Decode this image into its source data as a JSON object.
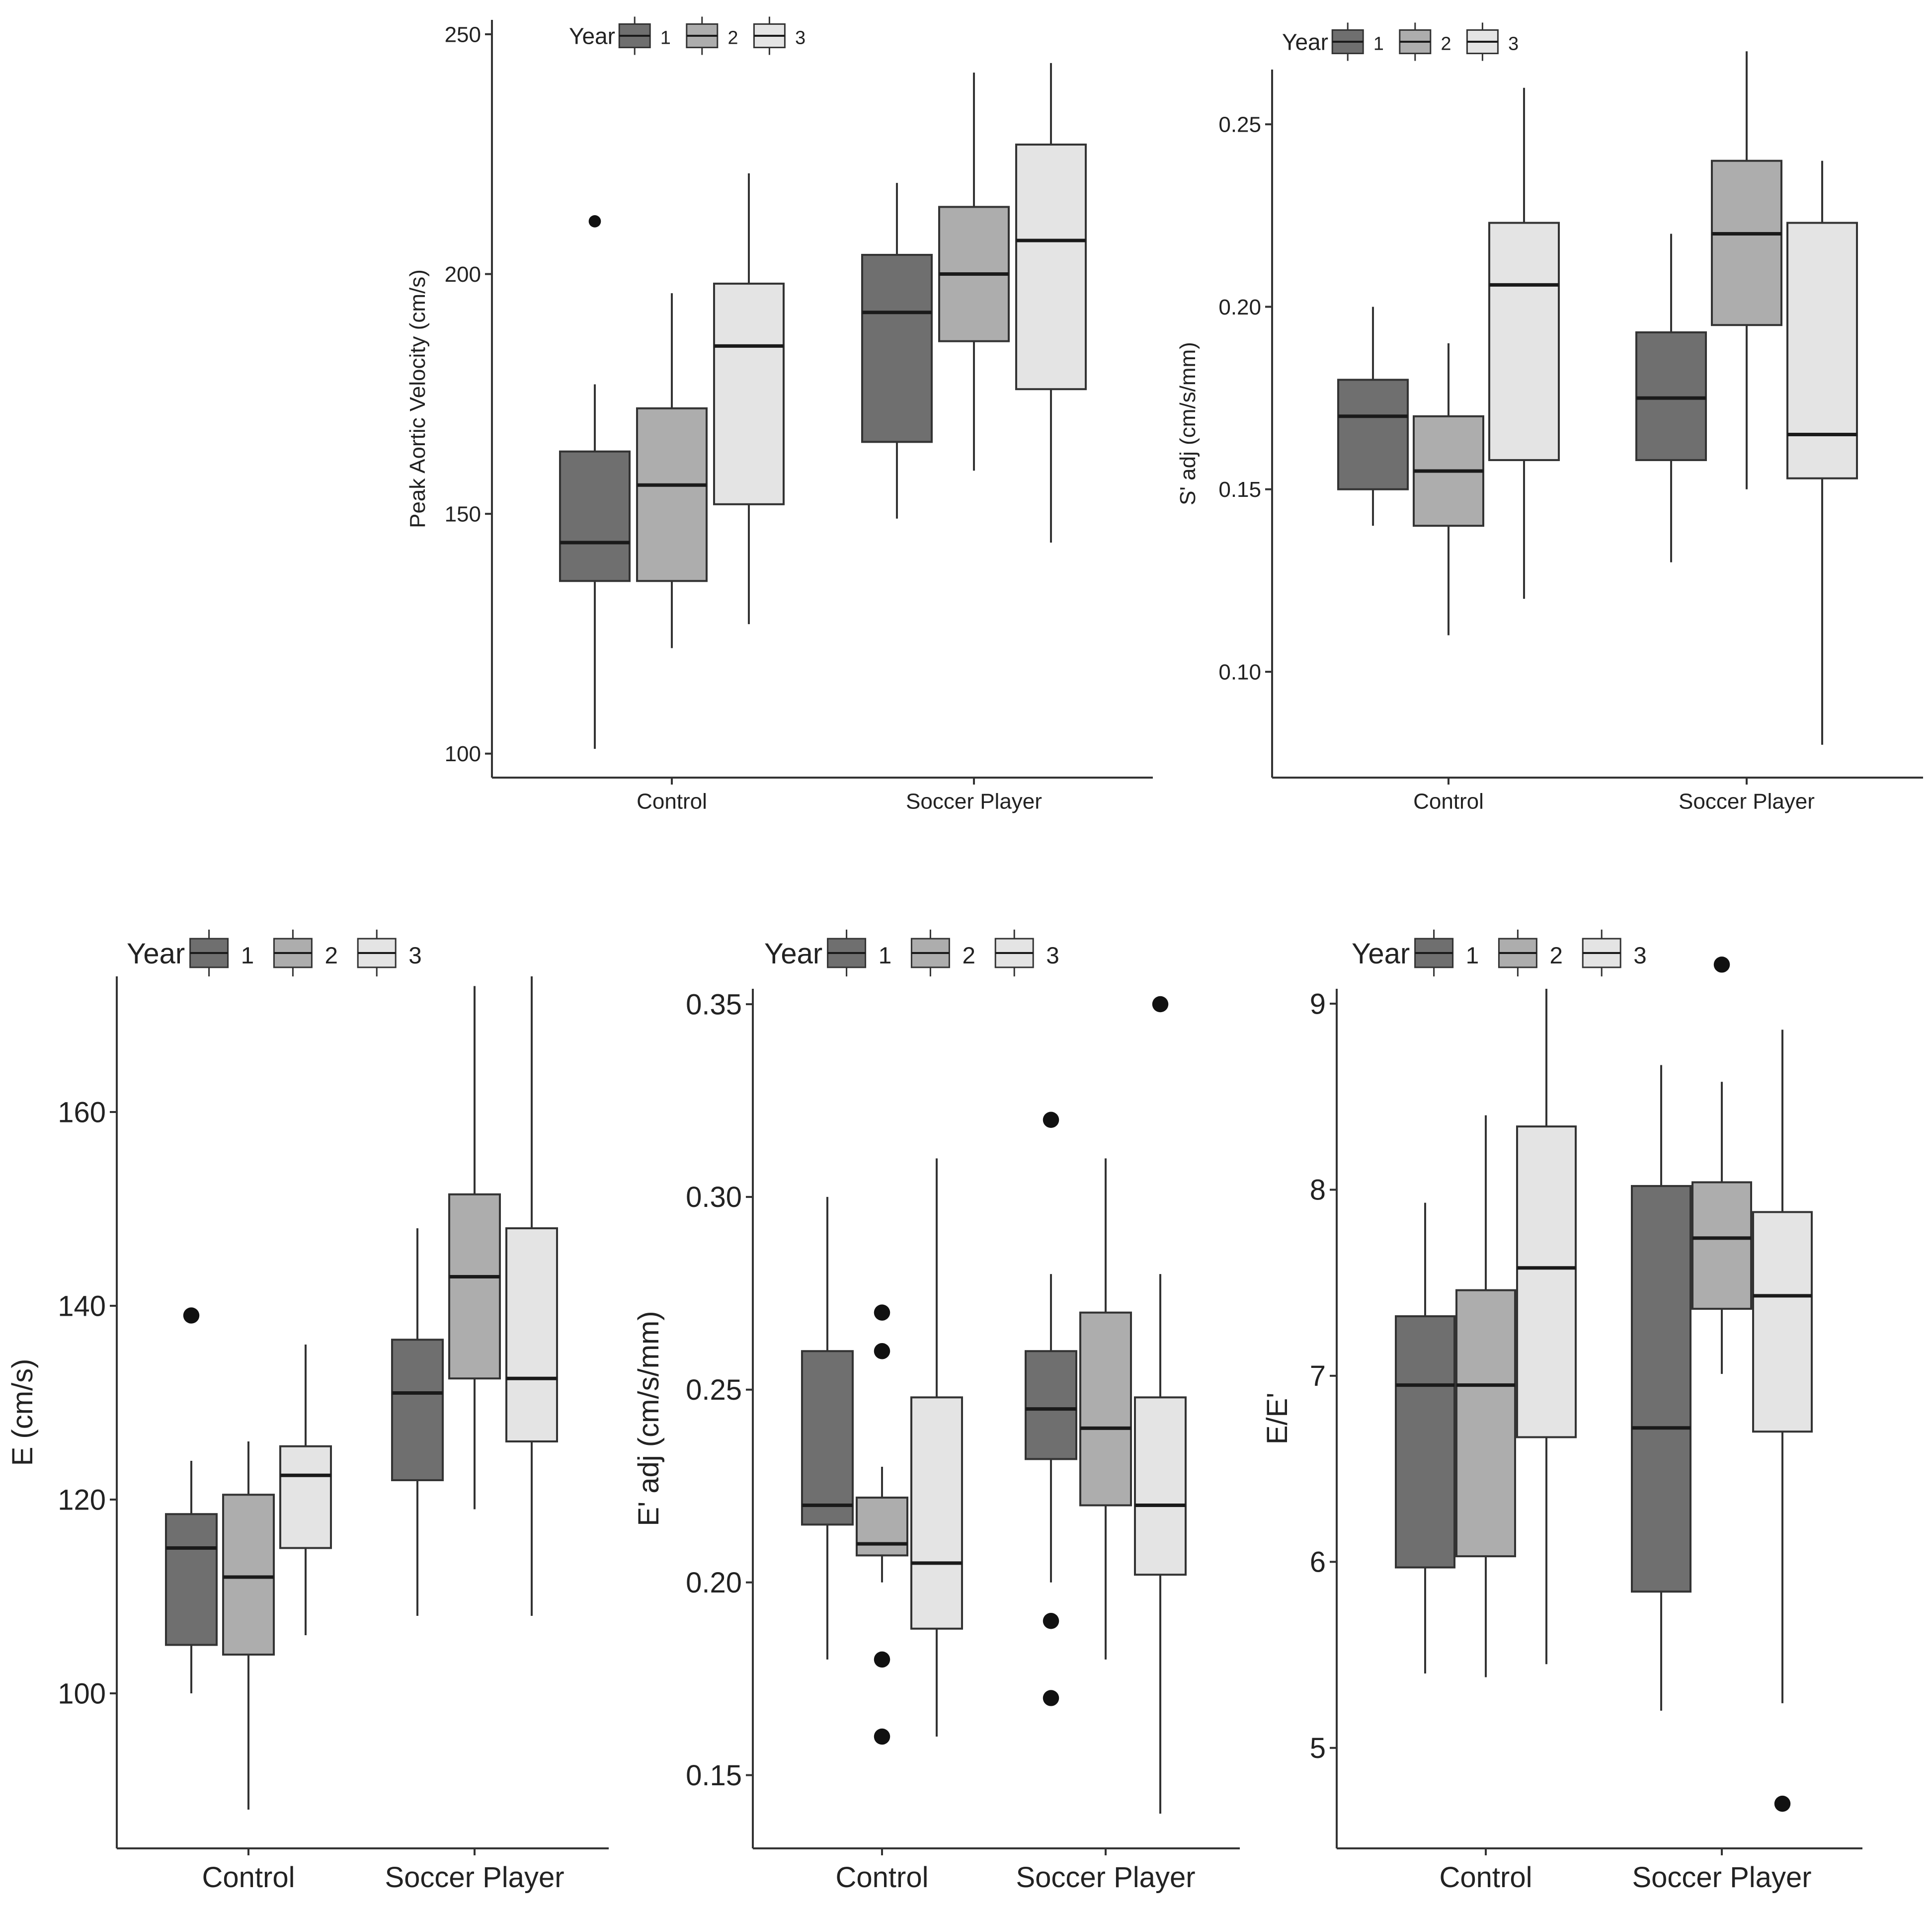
{
  "colors": {
    "year1": "#6f6f6f",
    "year2": "#adadad",
    "year3": "#e4e4e4",
    "stroke": "#333333",
    "axis": "#333333",
    "text": "#222222"
  },
  "chart_data": [
    {
      "type": "boxplot",
      "title": "",
      "xlabel": "",
      "ylabel": "Peak Aortic Velocity (cm/s)",
      "ylim": [
        95,
        253
      ],
      "yticks": [
        100,
        150,
        200,
        250
      ],
      "ytick_labels": [
        "100",
        "150",
        "200",
        "250"
      ],
      "categories": [
        "Control",
        "Soccer Player"
      ],
      "legend": {
        "title": "Year",
        "labels": [
          "1",
          "2",
          "3"
        ],
        "position": "top-left"
      },
      "series": [
        {
          "name": "1",
          "color": "#6f6f6f",
          "boxes": [
            {
              "whisker_low": 101,
              "q1": 136,
              "median": 144,
              "q3": 163,
              "whisker_high": 177,
              "outliers": [
                211
              ]
            },
            {
              "whisker_low": 149,
              "q1": 165,
              "median": 192,
              "q3": 204,
              "whisker_high": 219,
              "outliers": []
            }
          ]
        },
        {
          "name": "2",
          "color": "#adadad",
          "boxes": [
            {
              "whisker_low": 122,
              "q1": 136,
              "median": 156,
              "q3": 172,
              "whisker_high": 196,
              "outliers": []
            },
            {
              "whisker_low": 159,
              "q1": 186,
              "median": 200,
              "q3": 214,
              "whisker_high": 242,
              "outliers": []
            }
          ]
        },
        {
          "name": "3",
          "color": "#e4e4e4",
          "boxes": [
            {
              "whisker_low": 127,
              "q1": 152,
              "median": 185,
              "q3": 198,
              "whisker_high": 221,
              "outliers": []
            },
            {
              "whisker_low": 144,
              "q1": 176,
              "median": 207,
              "q3": 227,
              "whisker_high": 244,
              "outliers": []
            }
          ]
        }
      ]
    },
    {
      "type": "boxplot",
      "title": "",
      "xlabel": "",
      "ylabel": "S' adj (cm/s/mm)",
      "ylim": [
        0.071,
        0.265
      ],
      "yticks": [
        0.1,
        0.15,
        0.2,
        0.25
      ],
      "ytick_labels": [
        "0.10",
        "0.15",
        "0.20",
        "0.25"
      ],
      "categories": [
        "Control",
        "Soccer Player"
      ],
      "legend": {
        "title": "Year",
        "labels": [
          "1",
          "2",
          "3"
        ],
        "position": "top-left"
      },
      "series": [
        {
          "name": "1",
          "color": "#6f6f6f",
          "boxes": [
            {
              "whisker_low": 0.14,
              "q1": 0.15,
              "median": 0.17,
              "q3": 0.18,
              "whisker_high": 0.2,
              "outliers": []
            },
            {
              "whisker_low": 0.13,
              "q1": 0.158,
              "median": 0.175,
              "q3": 0.193,
              "whisker_high": 0.22,
              "outliers": []
            }
          ]
        },
        {
          "name": "2",
          "color": "#adadad",
          "boxes": [
            {
              "whisker_low": 0.11,
              "q1": 0.14,
              "median": 0.155,
              "q3": 0.17,
              "whisker_high": 0.19,
              "outliers": []
            },
            {
              "whisker_low": 0.15,
              "q1": 0.195,
              "median": 0.22,
              "q3": 0.24,
              "whisker_high": 0.27,
              "outliers": []
            }
          ]
        },
        {
          "name": "3",
          "color": "#e4e4e4",
          "boxes": [
            {
              "whisker_low": 0.12,
              "q1": 0.158,
              "median": 0.206,
              "q3": 0.223,
              "whisker_high": 0.26,
              "outliers": []
            },
            {
              "whisker_low": 0.08,
              "q1": 0.153,
              "median": 0.165,
              "q3": 0.223,
              "whisker_high": 0.24,
              "outliers": []
            }
          ]
        }
      ]
    },
    {
      "type": "boxplot",
      "title": "",
      "xlabel": "",
      "ylabel": "E (cm/s)",
      "ylim": [
        84,
        174
      ],
      "yticks": [
        100,
        120,
        140,
        160
      ],
      "ytick_labels": [
        "100",
        "120",
        "140",
        "160"
      ],
      "categories": [
        "Control",
        "Soccer Player"
      ],
      "legend": {
        "title": "Year",
        "labels": [
          "1",
          "2",
          "3"
        ],
        "position": "top-left"
      },
      "series": [
        {
          "name": "1",
          "color": "#6f6f6f",
          "boxes": [
            {
              "whisker_low": 100,
              "q1": 105,
              "median": 115,
              "q3": 118.5,
              "whisker_high": 124,
              "outliers": [
                139
              ]
            },
            {
              "whisker_low": 108,
              "q1": 122,
              "median": 131,
              "q3": 136.5,
              "whisker_high": 148,
              "outliers": []
            }
          ]
        },
        {
          "name": "2",
          "color": "#adadad",
          "boxes": [
            {
              "whisker_low": 88,
              "q1": 104,
              "median": 112,
              "q3": 120.5,
              "whisker_high": 126,
              "outliers": []
            },
            {
              "whisker_low": 119,
              "q1": 132.5,
              "median": 143,
              "q3": 151.5,
              "whisker_high": 173,
              "outliers": []
            }
          ]
        },
        {
          "name": "3",
          "color": "#e4e4e4",
          "boxes": [
            {
              "whisker_low": 106,
              "q1": 115,
              "median": 122.5,
              "q3": 125.5,
              "whisker_high": 136,
              "outliers": []
            },
            {
              "whisker_low": 108,
              "q1": 126,
              "median": 132.5,
              "q3": 148,
              "whisker_high": 174,
              "outliers": []
            }
          ]
        }
      ]
    },
    {
      "type": "boxplot",
      "title": "",
      "xlabel": "",
      "ylabel": "E' adj (cm/s/mm)",
      "ylim": [
        0.131,
        0.354
      ],
      "yticks": [
        0.15,
        0.2,
        0.25,
        0.3,
        0.35
      ],
      "ytick_labels": [
        "0.15",
        "0.20",
        "0.25",
        "0.30",
        "0.35"
      ],
      "categories": [
        "Control",
        "Soccer Player"
      ],
      "legend": {
        "title": "Year",
        "labels": [
          "1",
          "2",
          "3"
        ],
        "position": "top-left"
      },
      "series": [
        {
          "name": "1",
          "color": "#6f6f6f",
          "boxes": [
            {
              "whisker_low": 0.18,
              "q1": 0.215,
              "median": 0.22,
              "q3": 0.26,
              "whisker_high": 0.3,
              "outliers": []
            },
            {
              "whisker_low": 0.2,
              "q1": 0.232,
              "median": 0.245,
              "q3": 0.26,
              "whisker_high": 0.28,
              "outliers": [
                0.32,
                0.19,
                0.17
              ]
            }
          ]
        },
        {
          "name": "2",
          "color": "#adadad",
          "boxes": [
            {
              "whisker_low": 0.2,
              "q1": 0.207,
              "median": 0.21,
              "q3": 0.222,
              "whisker_high": 0.23,
              "outliers": [
                0.27,
                0.26,
                0.18,
                0.16
              ]
            },
            {
              "whisker_low": 0.18,
              "q1": 0.22,
              "median": 0.24,
              "q3": 0.27,
              "whisker_high": 0.31,
              "outliers": []
            }
          ]
        },
        {
          "name": "3",
          "color": "#e4e4e4",
          "boxes": [
            {
              "whisker_low": 0.16,
              "q1": 0.188,
              "median": 0.205,
              "q3": 0.248,
              "whisker_high": 0.31,
              "outliers": []
            },
            {
              "whisker_low": 0.14,
              "q1": 0.202,
              "median": 0.22,
              "q3": 0.248,
              "whisker_high": 0.28,
              "outliers": [
                0.35
              ]
            }
          ]
        }
      ]
    },
    {
      "type": "boxplot",
      "title": "",
      "xlabel": "",
      "ylabel": "E/E'",
      "ylim": [
        4.46,
        9.08
      ],
      "yticks": [
        5,
        6,
        7,
        8,
        9
      ],
      "ytick_labels": [
        "5",
        "6",
        "7",
        "8",
        "9"
      ],
      "categories": [
        "Control",
        "Soccer Player"
      ],
      "legend": {
        "title": "Year",
        "labels": [
          "1",
          "2",
          "3"
        ],
        "position": "top-left"
      },
      "series": [
        {
          "name": "1",
          "color": "#6f6f6f",
          "boxes": [
            {
              "whisker_low": 5.4,
              "q1": 5.97,
              "median": 6.95,
              "q3": 7.32,
              "whisker_high": 7.93,
              "outliers": []
            },
            {
              "whisker_low": 5.2,
              "q1": 5.84,
              "median": 6.72,
              "q3": 8.02,
              "whisker_high": 8.67,
              "outliers": []
            }
          ]
        },
        {
          "name": "2",
          "color": "#adadad",
          "boxes": [
            {
              "whisker_low": 5.38,
              "q1": 6.03,
              "median": 6.95,
              "q3": 7.46,
              "whisker_high": 8.4,
              "outliers": []
            },
            {
              "whisker_low": 7.01,
              "q1": 7.36,
              "median": 7.74,
              "q3": 8.04,
              "whisker_high": 8.58,
              "outliers": [
                9.21
              ]
            }
          ]
        },
        {
          "name": "3",
          "color": "#e4e4e4",
          "boxes": [
            {
              "whisker_low": 5.45,
              "q1": 6.67,
              "median": 7.58,
              "q3": 8.34,
              "whisker_high": 9.08,
              "outliers": []
            },
            {
              "whisker_low": 5.24,
              "q1": 6.7,
              "median": 7.43,
              "q3": 7.88,
              "whisker_high": 8.86,
              "outliers": [
                4.7
              ]
            }
          ]
        }
      ]
    }
  ]
}
